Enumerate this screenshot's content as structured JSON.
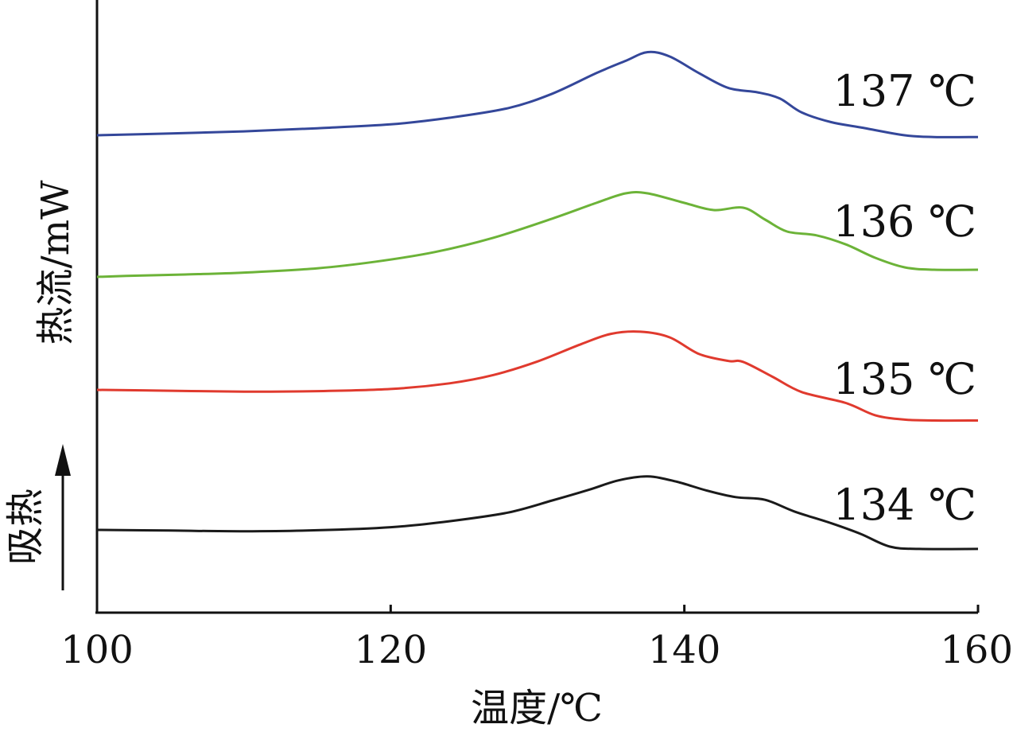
{
  "chart_data": {
    "type": "line",
    "xlabel": "温度/℃",
    "ylabel": "热流/mW",
    "endotherm_label": "吸热",
    "xlim": [
      100,
      160
    ],
    "x_ticks": [
      "100",
      "120",
      "140",
      "160"
    ],
    "y_ticks": [],
    "grid": false,
    "series": [
      {
        "name": "137 ℃",
        "color": "#34479a",
        "points": [
          [
            100,
            0.0
          ],
          [
            105,
            0.04
          ],
          [
            110,
            0.09
          ],
          [
            115,
            0.16
          ],
          [
            120,
            0.25
          ],
          [
            124,
            0.4
          ],
          [
            128,
            0.62
          ],
          [
            131,
            0.95
          ],
          [
            134,
            1.42
          ],
          [
            136,
            1.7
          ],
          [
            137.5,
            1.9
          ],
          [
            139,
            1.8
          ],
          [
            141,
            1.42
          ],
          [
            143,
            1.08
          ],
          [
            145,
            0.98
          ],
          [
            146.5,
            0.84
          ],
          [
            148,
            0.52
          ],
          [
            150,
            0.3
          ],
          [
            152,
            0.18
          ],
          [
            155,
            0.0
          ],
          [
            157,
            -0.04
          ],
          [
            160,
            -0.04
          ]
        ]
      },
      {
        "name": "136 ℃",
        "color": "#6cb338",
        "points": [
          [
            100,
            0.0
          ],
          [
            102,
            0.02
          ],
          [
            106,
            0.05
          ],
          [
            110,
            0.09
          ],
          [
            115,
            0.18
          ],
          [
            119,
            0.32
          ],
          [
            123,
            0.52
          ],
          [
            127,
            0.82
          ],
          [
            131,
            1.22
          ],
          [
            134,
            1.55
          ],
          [
            136,
            1.75
          ],
          [
            137.5,
            1.75
          ],
          [
            140,
            1.55
          ],
          [
            142,
            1.4
          ],
          [
            144,
            1.45
          ],
          [
            145.5,
            1.2
          ],
          [
            147,
            0.95
          ],
          [
            149,
            0.87
          ],
          [
            151,
            0.68
          ],
          [
            153,
            0.4
          ],
          [
            155,
            0.2
          ],
          [
            157,
            0.15
          ],
          [
            160,
            0.15
          ]
        ]
      },
      {
        "name": "135 ℃",
        "color": "#e03a2e",
        "points": [
          [
            100,
            0.0
          ],
          [
            105,
            -0.02
          ],
          [
            110,
            -0.04
          ],
          [
            115,
            -0.03
          ],
          [
            120,
            0.02
          ],
          [
            124,
            0.15
          ],
          [
            127,
            0.34
          ],
          [
            130,
            0.65
          ],
          [
            133,
            1.05
          ],
          [
            135,
            1.28
          ],
          [
            137,
            1.33
          ],
          [
            139,
            1.2
          ],
          [
            141,
            0.82
          ],
          [
            143,
            0.66
          ],
          [
            144,
            0.64
          ],
          [
            146,
            0.3
          ],
          [
            148,
            -0.05
          ],
          [
            151,
            -0.3
          ],
          [
            153,
            -0.58
          ],
          [
            155,
            -0.68
          ],
          [
            157,
            -0.7
          ],
          [
            160,
            -0.7
          ]
        ]
      },
      {
        "name": "134 ℃",
        "color": "#1a1a1a",
        "points": [
          [
            100,
            0.0
          ],
          [
            105,
            -0.02
          ],
          [
            110,
            -0.04
          ],
          [
            115,
            -0.01
          ],
          [
            120,
            0.08
          ],
          [
            124,
            0.26
          ],
          [
            128,
            0.52
          ],
          [
            131,
            0.88
          ],
          [
            133.5,
            1.2
          ],
          [
            135.5,
            1.48
          ],
          [
            137.5,
            1.6
          ],
          [
            139.5,
            1.44
          ],
          [
            141.5,
            1.18
          ],
          [
            143.5,
            0.98
          ],
          [
            145.5,
            0.9
          ],
          [
            147.5,
            0.55
          ],
          [
            150,
            0.2
          ],
          [
            152,
            -0.12
          ],
          [
            154,
            -0.5
          ],
          [
            156,
            -0.57
          ],
          [
            160,
            -0.57
          ]
        ]
      }
    ]
  }
}
